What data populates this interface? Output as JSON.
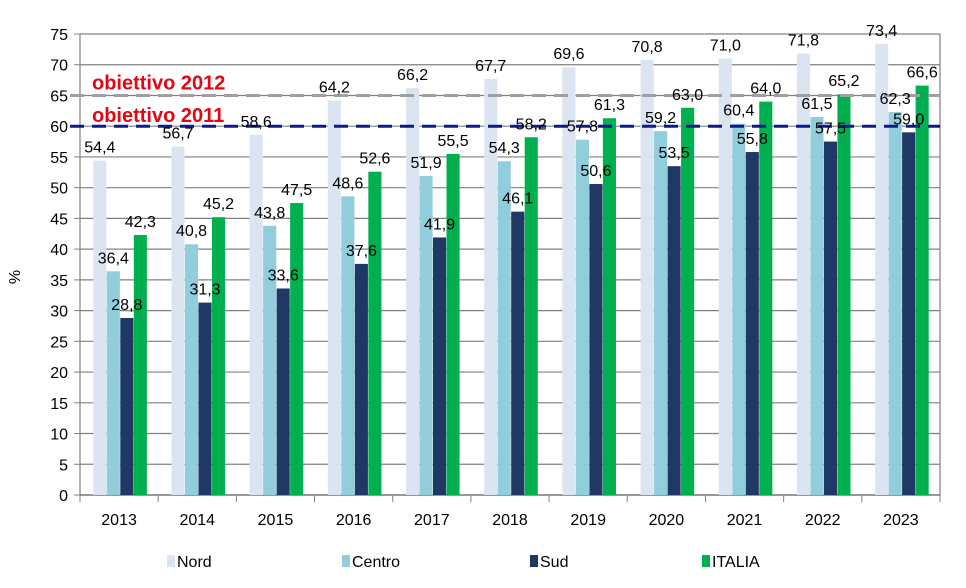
{
  "chart_data": {
    "type": "bar",
    "title": "",
    "xlabel": "",
    "ylabel": "%",
    "ylim": [
      0,
      75
    ],
    "yticks": [
      0,
      5,
      10,
      15,
      20,
      25,
      30,
      35,
      40,
      45,
      50,
      55,
      60,
      65,
      70,
      75
    ],
    "grid": true,
    "legend_position": "bottom",
    "categories": [
      "2013",
      "2014",
      "2015",
      "2016",
      "2017",
      "2018",
      "2019",
      "2020",
      "2021",
      "2022",
      "2023"
    ],
    "series": [
      {
        "name": "Nord",
        "color": "#dbe5f1",
        "values": [
          54.4,
          56.7,
          58.6,
          64.2,
          66.2,
          67.7,
          69.6,
          70.8,
          71.0,
          71.8,
          73.4
        ],
        "labels": [
          "54,4",
          "56,7",
          "58,6",
          "64,2",
          "66,2",
          "67,7",
          "69,6",
          "70,8",
          "71,0",
          "71,8",
          "73,4"
        ]
      },
      {
        "name": "Centro",
        "color": "#92cddc",
        "values": [
          36.4,
          40.8,
          43.8,
          48.6,
          51.9,
          54.3,
          57.8,
          59.2,
          60.4,
          61.5,
          62.3
        ],
        "labels": [
          "36,4",
          "40,8",
          "43,8",
          "48,6",
          "51,9",
          "54,3",
          "57,8",
          "59,2",
          "60,4",
          "61,5",
          "62,3"
        ]
      },
      {
        "name": "Sud",
        "color": "#1f3864",
        "values": [
          28.8,
          31.3,
          33.6,
          37.6,
          41.9,
          46.1,
          50.6,
          53.5,
          55.8,
          57.5,
          59.0
        ],
        "labels": [
          "28,8",
          "31,3",
          "33,6",
          "37,6",
          "41,9",
          "46,1",
          "50,6",
          "53,5",
          "55,8",
          "57,5",
          "59,0"
        ]
      },
      {
        "name": "ITALIA",
        "color": "#00b050",
        "values": [
          42.3,
          45.2,
          47.5,
          52.6,
          55.5,
          58.2,
          61.3,
          63.0,
          64.0,
          65.2,
          66.6
        ],
        "labels": [
          "42,3",
          "45,2",
          "47,5",
          "52,6",
          "55,5",
          "58,2",
          "61,3",
          "63,0",
          "64,0",
          "65,2",
          "66,6"
        ]
      }
    ],
    "reference_lines": [
      {
        "label": "obiettivo 2012",
        "value": 65,
        "color": "#a0a0a0"
      },
      {
        "label": "obiettivo 2011",
        "value": 60,
        "color": "#0d1a8a"
      }
    ],
    "annotation_color": "#e30613"
  }
}
